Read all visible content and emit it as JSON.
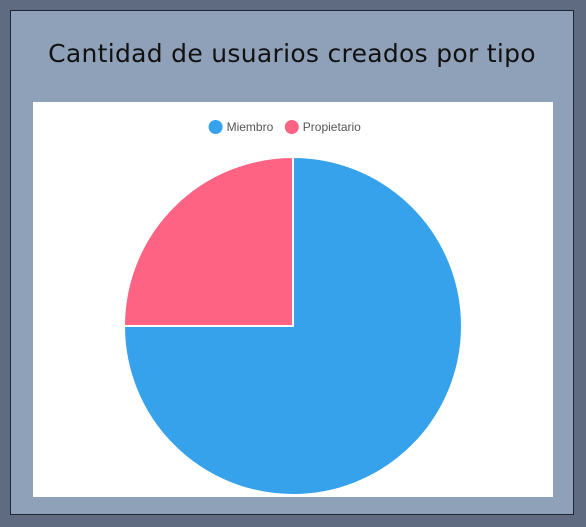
{
  "title": "Cantidad de usuarios creados por tipo",
  "colors": {
    "page_bg": "#5f6b80",
    "panel_bg": "#8fa0b9",
    "card_bg": "#ffffff",
    "miembro": "#36a2eb",
    "propietario": "#ff6384"
  },
  "chart_data": {
    "type": "pie",
    "title": "",
    "legend_position": "top",
    "categories": [
      "Miembro",
      "Propietario"
    ],
    "values": [
      3,
      1
    ],
    "colors": [
      "#36a2eb",
      "#ff6384"
    ]
  }
}
